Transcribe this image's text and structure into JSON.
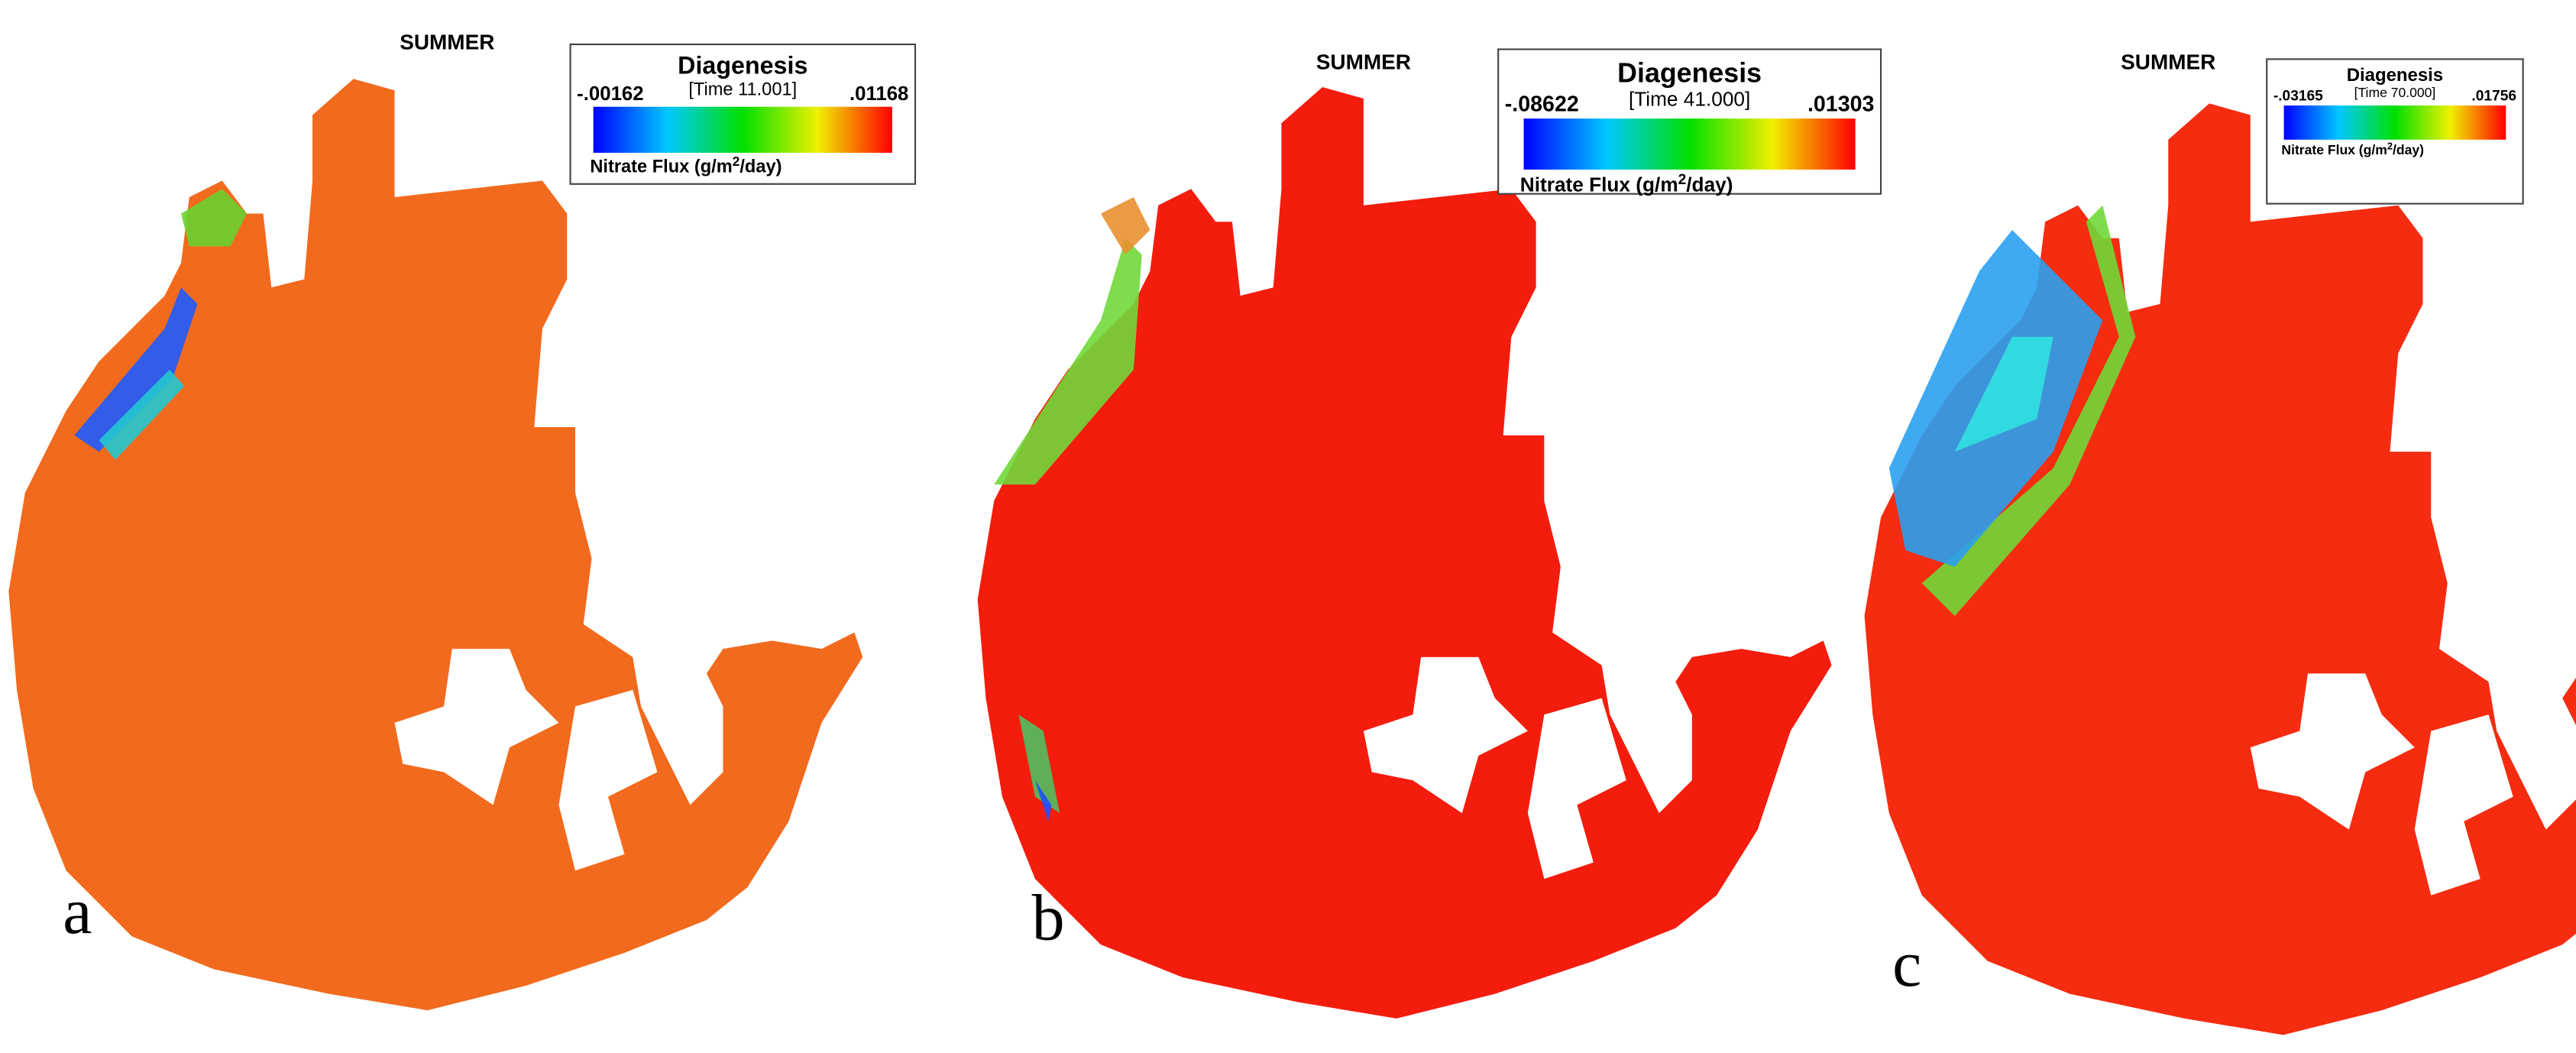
{
  "panels": [
    {
      "title": "SUMMER",
      "legend_title": "Diagenesis",
      "time": "[Time 11.001]",
      "min": "-.00162",
      "max": ".01168",
      "unit_prefix": "Nitrate Flux (g/m",
      "unit_exponent": "2",
      "unit_suffix": "/day)",
      "letter": "a"
    },
    {
      "title": "SUMMER",
      "legend_title": "Diagenesis",
      "time": "[Time 41.000]",
      "min": "-.08622",
      "max": ".01303",
      "unit_prefix": "Nitrate Flux (g/m",
      "unit_exponent": "2",
      "unit_suffix": "/day)",
      "letter": "b"
    },
    {
      "title": "SUMMER",
      "legend_title": "Diagenesis",
      "time": "[Time 70.000]",
      "min": "-.03165",
      "max": ".01756",
      "unit_prefix": "Nitrate Flux (g/m",
      "unit_exponent": "2",
      "unit_suffix": "/day)",
      "letter": "c"
    }
  ]
}
